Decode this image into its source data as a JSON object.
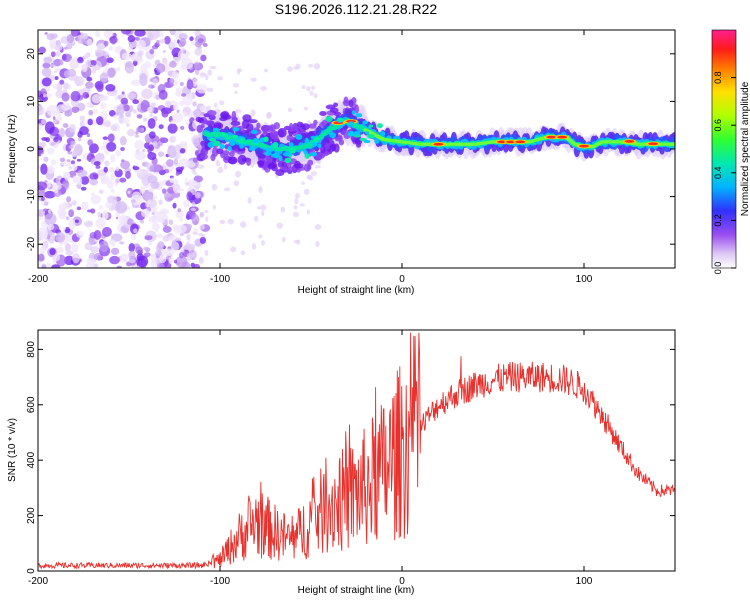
{
  "title": "S196.2026.112.21.28.R22",
  "chart_data": [
    {
      "type": "heatmap",
      "xlabel": "Height of straight line (km)",
      "ylabel": "Frequency (Hz)",
      "xlim": [
        -200,
        150
      ],
      "ylim": [
        -25,
        25
      ],
      "xticks": [
        -200,
        -100,
        0,
        100
      ],
      "yticks": [
        -20,
        -10,
        0,
        10,
        20
      ],
      "colorbar": {
        "label": "Normalized spectral amplitude",
        "range": [
          0,
          1
        ],
        "ticks": [
          "0.0",
          "0.2",
          "0.4",
          "0.6",
          "0.8"
        ],
        "tick_values": [
          0.0,
          0.2,
          0.4,
          0.6,
          0.8
        ]
      },
      "ridge": {
        "x": [
          -110,
          -100,
          -90,
          -80,
          -70,
          -60,
          -50,
          -40,
          -35,
          -30,
          -25,
          -20,
          -10,
          0,
          10,
          20,
          30,
          40,
          50,
          60,
          70,
          80,
          90,
          95,
          100,
          105,
          110,
          120,
          130,
          140,
          150
        ],
        "y": [
          3,
          3,
          2,
          1,
          0,
          0,
          1,
          4,
          5,
          6,
          5,
          4,
          2,
          1.5,
          1,
          1,
          1,
          1,
          1.5,
          1.5,
          1.5,
          2.5,
          2.5,
          1,
          0.5,
          0.5,
          1.5,
          1.5,
          1,
          1,
          1
        ]
      }
    },
    {
      "type": "line",
      "xlabel": "Height of straight line (km)",
      "ylabel": "SNR (10 * v/v)",
      "xlim": [
        -200,
        150
      ],
      "ylim": [
        0,
        870
      ],
      "xticks": [
        -200,
        -100,
        0,
        100
      ],
      "yticks": [
        0,
        200,
        400,
        600,
        800
      ],
      "series": [
        {
          "name": "SNR",
          "color": "#e8302c",
          "envelope_x": [
            -200,
            -110,
            -100,
            -90,
            -80,
            -70,
            -60,
            -50,
            -40,
            -30,
            -20,
            -10,
            0,
            10,
            20,
            30,
            40,
            50,
            60,
            70,
            80,
            90,
            100,
            110,
            120,
            130,
            140,
            150
          ],
          "envelope_y": [
            20,
            20,
            40,
            120,
            180,
            140,
            110,
            180,
            240,
            260,
            300,
            360,
            440,
            520,
            600,
            640,
            670,
            690,
            700,
            700,
            700,
            690,
            660,
            560,
            450,
            350,
            290,
            290
          ]
        }
      ]
    }
  ]
}
